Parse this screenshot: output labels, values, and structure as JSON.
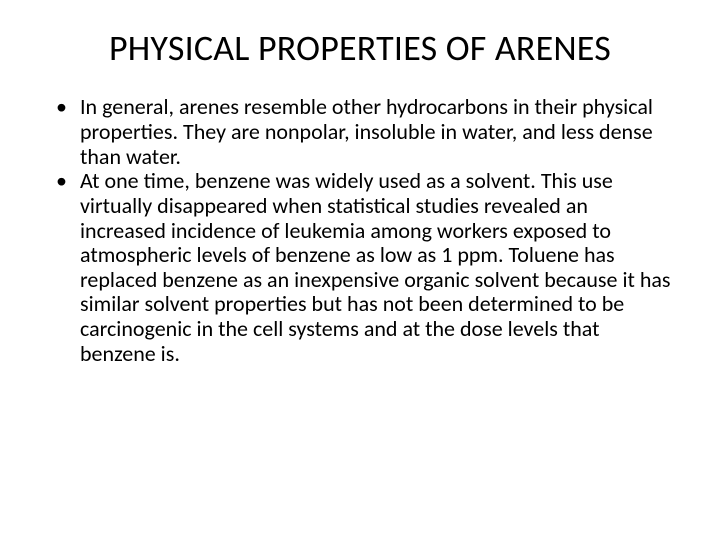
{
  "slide": {
    "title": "PHYSICAL PROPERTIES OF ARENES",
    "bullets": [
      "In general, arenes resemble other hydrocarbons in their physical properties. They are nonpolar, insoluble in water, and less dense than water.",
      "At one time, benzene was widely used as a solvent. This use virtually disappeared when statistical studies revealed an increased incidence of leukemia among workers exposed to atmospheric levels of benzene as low as 1 ppm. Toluene has replaced benzene as an inexpensive organic solvent because it has similar solvent properties but has not been determined to be carcinogenic in the cell systems and at the dose levels that benzene is."
    ]
  },
  "style": {
    "background_color": "#ffffff",
    "text_color": "#000000",
    "title_fontsize": 36,
    "body_fontsize": 22,
    "font_family": "Calibri"
  }
}
